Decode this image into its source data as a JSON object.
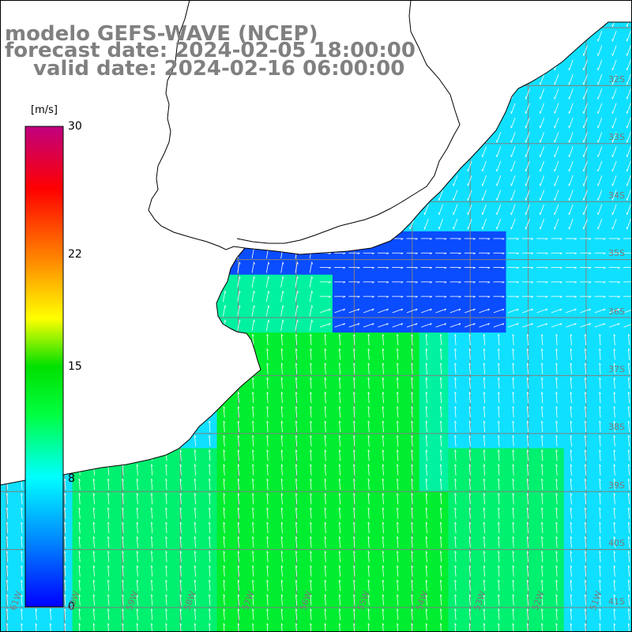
{
  "title": {
    "line1": "modelo GEFS-WAVE (NCEP)",
    "line2": "forecast date: 2024-02-05 18:00:00",
    "line3": "valid date: 2024-02-16 06:00:00"
  },
  "colorbar": {
    "unit": "[m/s]",
    "ticks": [
      "30",
      "22",
      "15",
      "8",
      "0"
    ],
    "tick_values": [
      30,
      22,
      15,
      8,
      0
    ],
    "range": [
      0,
      30
    ],
    "colors": [
      "#0000ff",
      "#00aaff",
      "#00ffff",
      "#00ff40",
      "#00e000",
      "#ffff00",
      "#ff8000",
      "#ff0000",
      "#c00080"
    ]
  },
  "map": {
    "lat_labels": [
      "32S",
      "33S",
      "34S",
      "35S",
      "36S",
      "37S",
      "38S",
      "39S",
      "40S",
      "41S"
    ],
    "lon_labels": [
      "61W",
      "60W",
      "59W",
      "58W",
      "57W",
      "56W",
      "55W",
      "54W",
      "53W",
      "52W",
      "51W",
      "50W"
    ],
    "land_color": "#ffffff",
    "coast_color": "#000000",
    "grid_color": "#808080"
  }
}
